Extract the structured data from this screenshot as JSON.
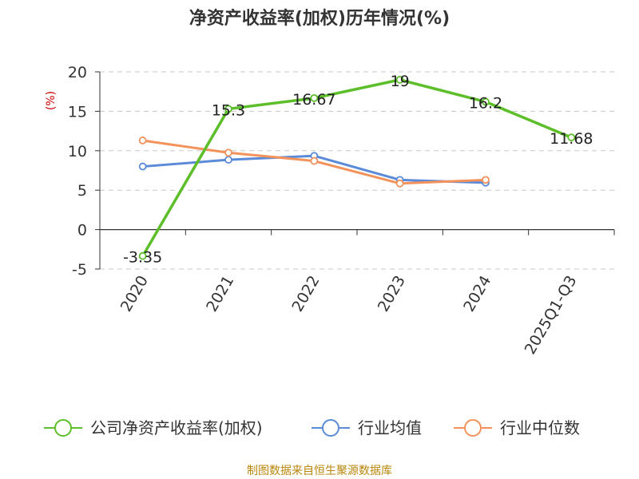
{
  "chart_data": {
    "type": "line",
    "title": "净资产收益率(加权)历年情况(%)",
    "ylabel": "(%)",
    "categories": [
      "2020",
      "2021",
      "2022",
      "2023",
      "2024",
      "2025Q1-Q3"
    ],
    "ylim": [
      -5,
      20
    ],
    "yticks": [
      -5,
      0,
      5,
      10,
      15,
      20
    ],
    "grid": true,
    "legend_position": "bottom",
    "series": [
      {
        "name": "公司净资产收益率(加权)",
        "color": "#5cbf2a",
        "values": [
          -3.35,
          15.3,
          16.67,
          19,
          16.2,
          11.68
        ],
        "labels": [
          "-3.35",
          "15.3",
          "16.67",
          "19",
          "16.2",
          "11.68"
        ]
      },
      {
        "name": "行业均值",
        "color": "#5b8ad8",
        "values": [
          8.0,
          8.85,
          9.35,
          6.3,
          5.95,
          null
        ]
      },
      {
        "name": "行业中位数",
        "color": "#f4925c",
        "values": [
          11.3,
          9.75,
          8.7,
          5.85,
          6.3,
          null
        ]
      }
    ]
  },
  "footer": {
    "source": "制图数据来自恒生聚源数据库"
  }
}
